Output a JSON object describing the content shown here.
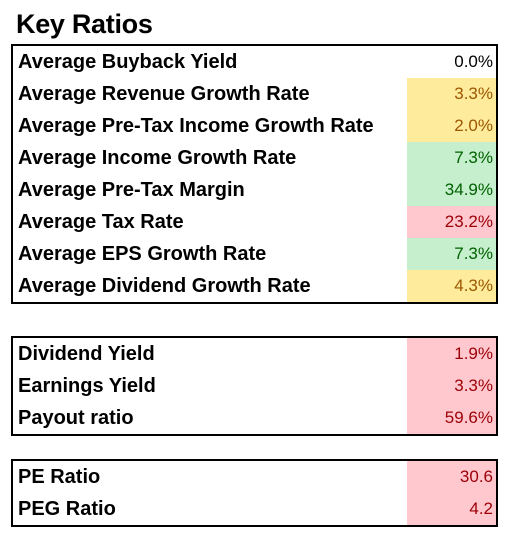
{
  "title": "Key Ratios",
  "colors": {
    "neutral_bg": "#FFFFFF",
    "yellow_bg": "#FFEB9C",
    "yellow_text": "#9C5700",
    "green_bg": "#C6EFCE",
    "green_text": "#006100",
    "red_bg": "#FFC7CE",
    "red_text": "#9C0006"
  },
  "tables": [
    {
      "rows": [
        {
          "label": "Average Buyback Yield",
          "value": "0.0%",
          "status": "neutral"
        },
        {
          "label": "Average Revenue Growth Rate",
          "value": "3.3%",
          "status": "yellow"
        },
        {
          "label": "Average Pre-Tax Income Growth Rate",
          "value": "2.0%",
          "status": "yellow"
        },
        {
          "label": "Average Income Growth Rate",
          "value": "7.3%",
          "status": "green"
        },
        {
          "label": "Average Pre-Tax Margin",
          "value": "34.9%",
          "status": "green"
        },
        {
          "label": "Average Tax Rate",
          "value": "23.2%",
          "status": "red"
        },
        {
          "label": "Average EPS Growth Rate",
          "value": "7.3%",
          "status": "green"
        },
        {
          "label": "Average Dividend Growth Rate",
          "value": "4.3%",
          "status": "yellow"
        }
      ]
    },
    {
      "rows": [
        {
          "label": "Dividend Yield",
          "value": "1.9%",
          "status": "red"
        },
        {
          "label": "Earnings Yield",
          "value": "3.3%",
          "status": "red"
        },
        {
          "label": "Payout ratio",
          "value": "59.6%",
          "status": "red"
        }
      ]
    },
    {
      "rows": [
        {
          "label": "PE Ratio",
          "value": "30.6",
          "status": "red"
        },
        {
          "label": "PEG Ratio",
          "value": "4.2",
          "status": "red"
        }
      ]
    }
  ]
}
